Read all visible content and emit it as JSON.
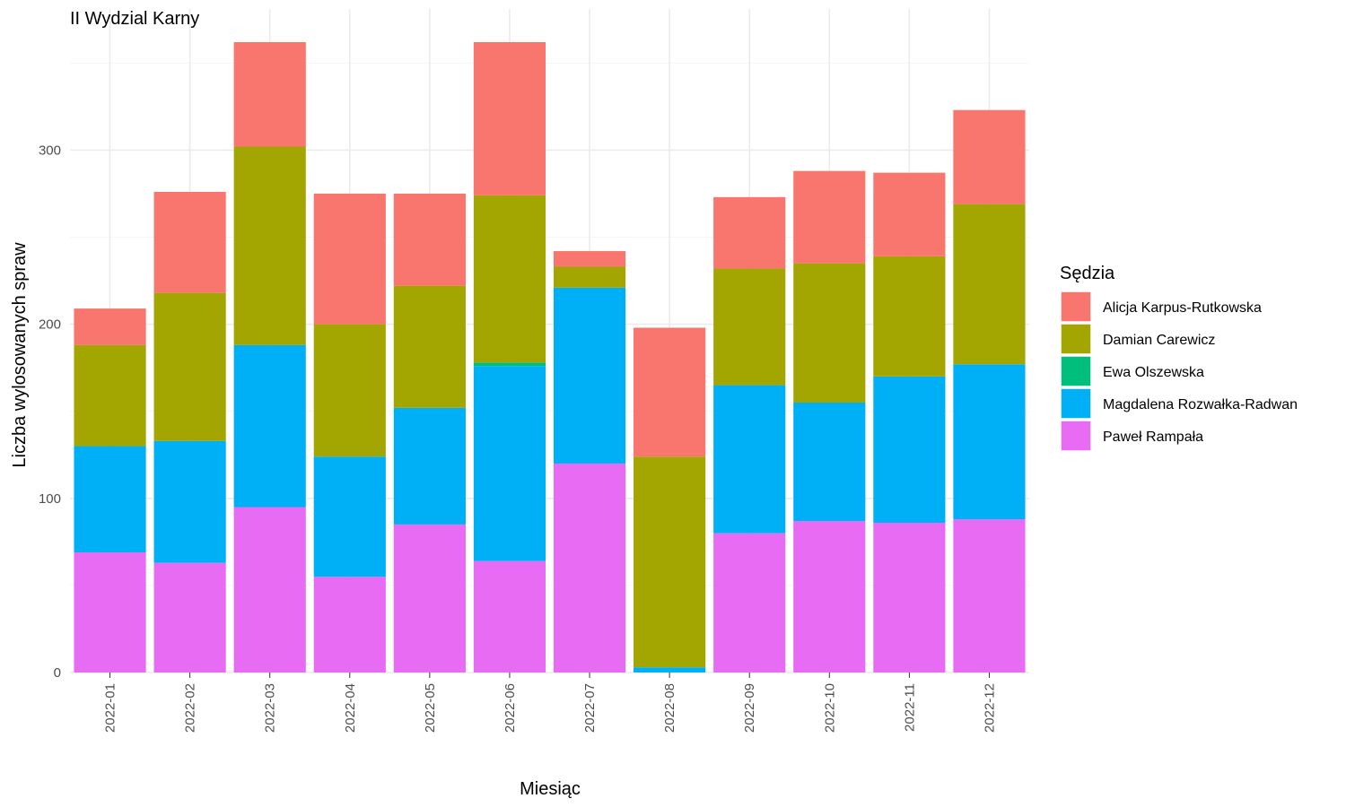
{
  "chart_data": {
    "type": "bar",
    "stacked": true,
    "title": "II Wydzial Karny",
    "xlabel": "Miesiąc",
    "ylabel": "Liczba wylosowanych spraw",
    "ylim": [
      0,
      380
    ],
    "yticks": [
      0,
      100,
      200,
      300
    ],
    "grid": true,
    "legend": {
      "title": "Sędzia",
      "position": "right"
    },
    "categories": [
      "2022-01",
      "2022-02",
      "2022-03",
      "2022-04",
      "2022-05",
      "2022-06",
      "2022-07",
      "2022-08",
      "2022-09",
      "2022-10",
      "2022-11",
      "2022-12"
    ],
    "series": [
      {
        "name": "Paweł Rampała",
        "color": "#E76BF3",
        "values": [
          69,
          63,
          95,
          55,
          85,
          64,
          120,
          0,
          80,
          87,
          86,
          88
        ]
      },
      {
        "name": "Magdalena Rozwałka-Radwan",
        "color": "#00B0F6",
        "values": [
          61,
          70,
          93,
          69,
          67,
          112,
          101,
          3,
          85,
          68,
          84,
          89
        ]
      },
      {
        "name": "Ewa Olszewska",
        "color": "#00BF7D",
        "values": [
          0,
          0,
          0,
          0,
          0,
          2,
          0,
          0,
          0,
          0,
          0,
          0
        ]
      },
      {
        "name": "Damian Carewicz",
        "color": "#A3A500",
        "values": [
          58,
          85,
          114,
          76,
          70,
          96,
          12,
          121,
          67,
          80,
          69,
          92
        ]
      },
      {
        "name": "Alicja Karpus-Rutkowska",
        "color": "#F8766D",
        "values": [
          21,
          58,
          60,
          75,
          53,
          88,
          9,
          74,
          41,
          53,
          48,
          54
        ]
      }
    ],
    "legend_order": [
      "Alicja Karpus-Rutkowska",
      "Damian Carewicz",
      "Ewa Olszewska",
      "Magdalena Rozwałka-Radwan",
      "Paweł Rampała"
    ]
  }
}
